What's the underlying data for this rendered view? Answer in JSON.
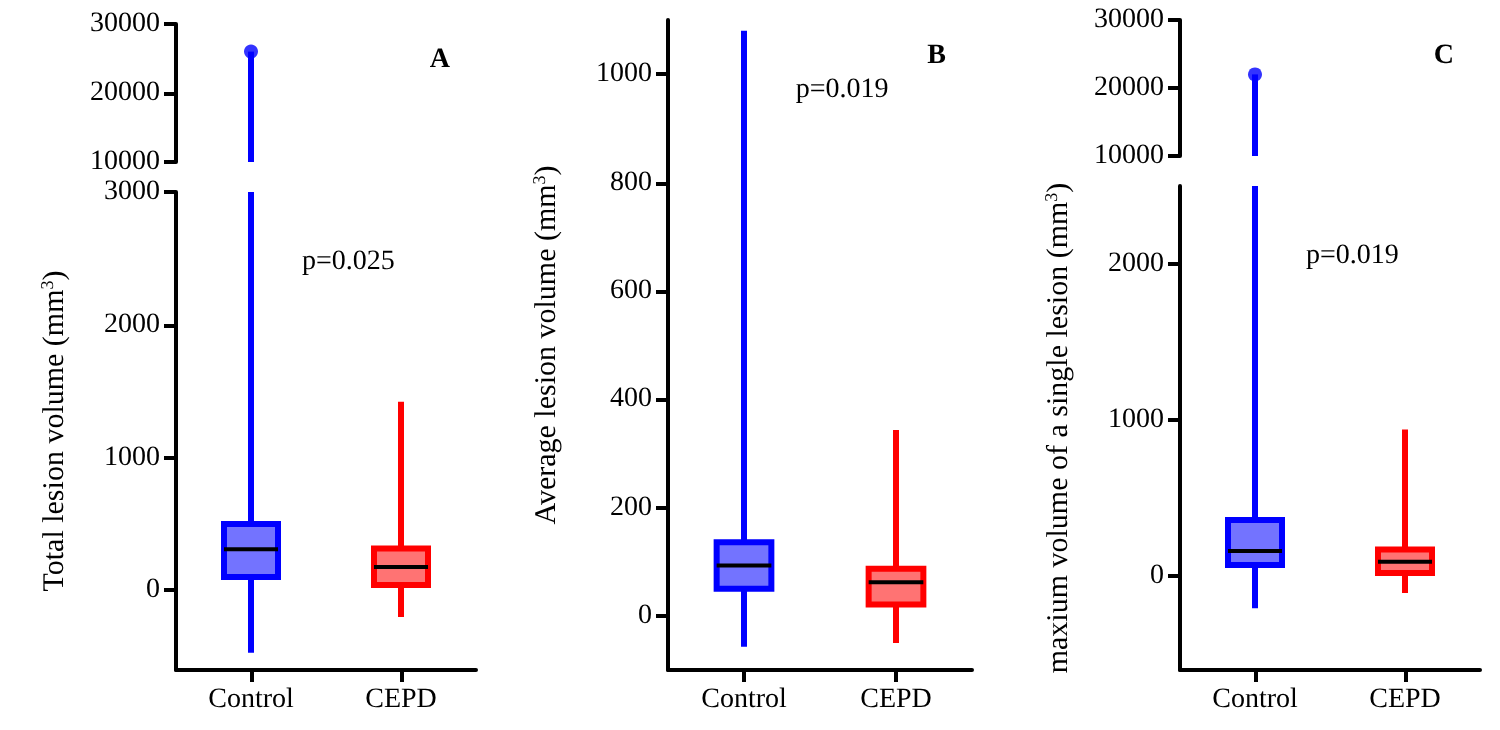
{
  "chart_data": [
    {
      "type": "scatter",
      "title": "A",
      "categories": [
        "Control",
        "CEPD"
      ],
      "series": [
        {
          "color": "#0000ff",
          "x": [
            "Control"
          ],
          "values": [
            26000
          ]
        }
      ],
      "marker": "circle",
      "ylim": [
        10000,
        30000
      ],
      "yticks": [
        10000,
        20000,
        30000
      ],
      "tick_labels": "y"
    },
    {
      "type": "box",
      "categories": [
        "Control",
        "CEPD"
      ],
      "ylabel": "Total lesion volume (mm$^{3}$)",
      "annotations": [
        "p=0.025"
      ],
      "colors": [
        "#0000ff",
        "#ff0000"
      ],
      "boxes": [
        {
          "low": -470,
          "q1": 100,
          "median": 310,
          "q3": 500,
          "high": null
        },
        {
          "low": -200,
          "q1": 40,
          "median": 175,
          "q3": 315,
          "high": 1420
        }
      ],
      "ylim": [
        -600,
        3000
      ],
      "yticks": [
        0,
        1000,
        2000,
        3000
      ]
    },
    {
      "type": "box",
      "title": "B",
      "categories": [
        "Control",
        "CEPD"
      ],
      "ylabel": "Average lesion volume (mm$^{3}$)",
      "annotations": [
        "p=0.019"
      ],
      "colors": [
        "#0000ff",
        "#ff0000"
      ],
      "boxes": [
        {
          "low": -57,
          "q1": 50,
          "median": 93,
          "q3": 136,
          "high": 1080
        },
        {
          "low": -50,
          "q1": 21,
          "median": 62,
          "q3": 87,
          "high": 343
        }
      ],
      "ylim": [
        -100,
        1100
      ],
      "yticks": [
        0,
        200,
        400,
        600,
        800,
        1000
      ]
    },
    {
      "type": "scatter",
      "title": "C",
      "categories": [
        "Control",
        "CEPD"
      ],
      "series": [
        {
          "color": "#0000ff",
          "x": [
            "Control"
          ],
          "values": [
            22000
          ]
        }
      ],
      "marker": "circle",
      "ylim": [
        10000,
        30000
      ],
      "yticks": [
        10000,
        20000,
        30000
      ],
      "tick_labels": "y"
    },
    {
      "type": "box",
      "categories": [
        "Control",
        "CEPD"
      ],
      "ylabel": "maxium volume of a single lesion (mm$^{3}$)",
      "annotations": [
        "p=0.019"
      ],
      "colors": [
        "#0000ff",
        "#ff0000"
      ],
      "boxes": [
        {
          "low": -205,
          "q1": 73,
          "median": 162,
          "q3": 360,
          "high": null
        },
        {
          "low": -107,
          "q1": 21,
          "median": 94,
          "q3": 171,
          "high": 940
        }
      ],
      "ylim": [
        -600,
        2500
      ],
      "yticks": [
        0,
        1000,
        2000
      ]
    }
  ]
}
